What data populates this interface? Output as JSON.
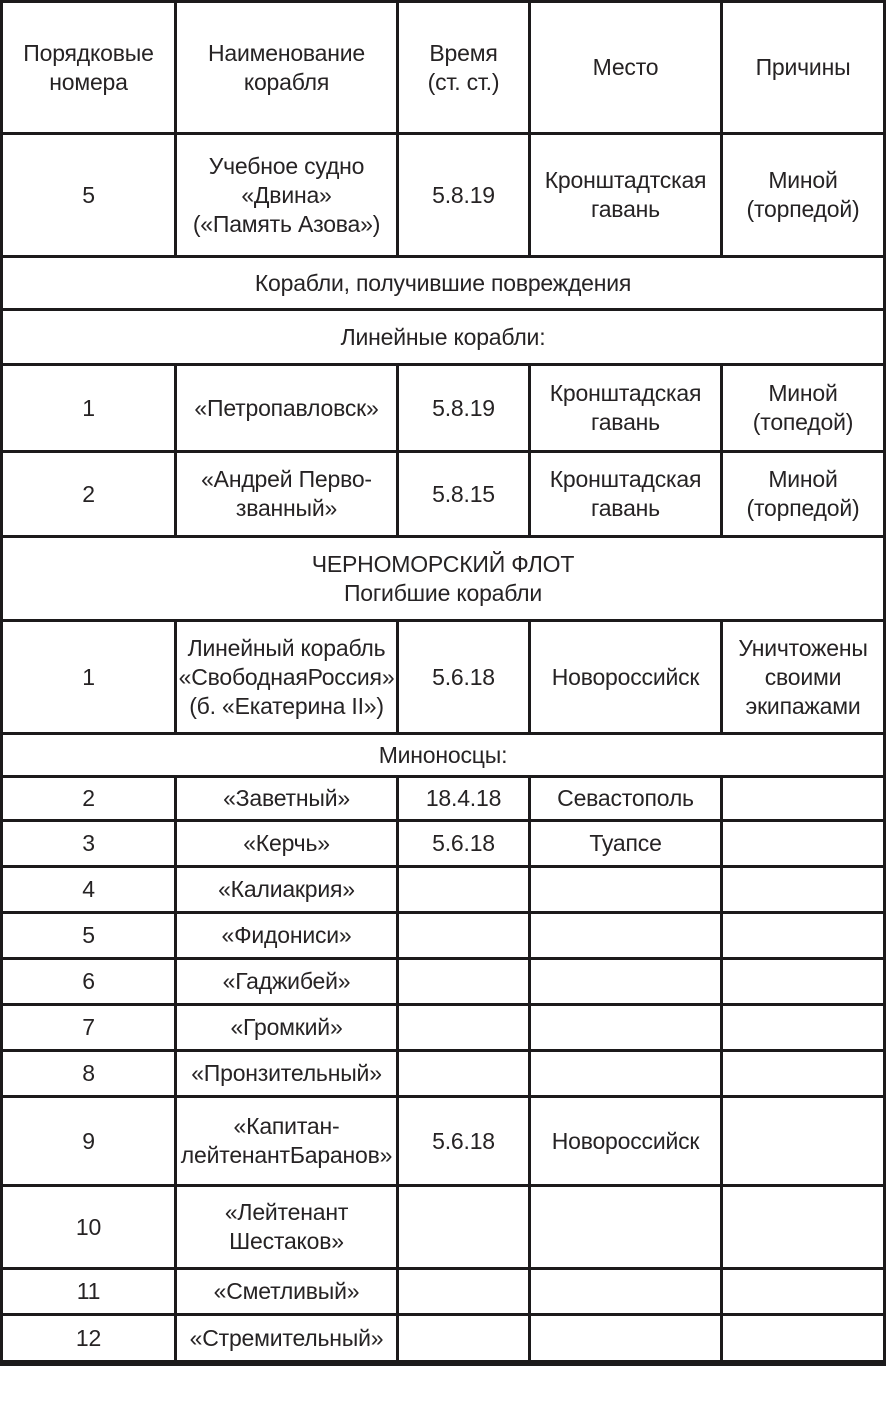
{
  "table": {
    "columns": [
      "Порядковые\nномера",
      "Наименование\nкорабля",
      "Время\n(ст. ст.)",
      "Место",
      "Причины"
    ],
    "rows": [
      {
        "type": "header",
        "cells": [
          "Порядковые\nномера",
          "Наименование\nкорабля",
          "Время\n(ст. ст.)",
          "Место",
          "Причины"
        ]
      },
      {
        "type": "data",
        "cells": [
          "5",
          "Учебное судно\n«Двина»\n(«Память Азова»)",
          "5.8.19",
          "Кронштадтская\nгавань",
          "Миной\n(торпедой)"
        ]
      },
      {
        "type": "section",
        "label": "Корабли, получившие повреждения"
      },
      {
        "type": "section",
        "label": "Линейные корабли:"
      },
      {
        "type": "data",
        "cells": [
          "1",
          "«Петропавловск»",
          "5.8.19",
          "Кронштадская\nгавань",
          "Миной\n(топедой)"
        ]
      },
      {
        "type": "data",
        "cells": [
          "2",
          "«Андрей Перво-\nзванный»",
          "5.8.15",
          "Кронштадская\nгавань",
          "Миной\n(торпедой)"
        ]
      },
      {
        "type": "section",
        "label": "ЧЕРНОМОРСКИЙ ФЛОТ\nПогибшие корабли"
      },
      {
        "type": "data",
        "cells": [
          "1",
          "Линейный корабль\n«СвободнаяРоссия»\n(б. «Екатерина II»)",
          "5.6.18",
          "Новороссийск",
          "Уничтожены\nсвоими\nэкипажами"
        ]
      },
      {
        "type": "section",
        "label": "Миноносцы:"
      },
      {
        "type": "data",
        "cells": [
          "2",
          "«Заветный»",
          "18.4.18",
          "Севастополь",
          ""
        ]
      },
      {
        "type": "data",
        "cells": [
          "3",
          "«Керчь»",
          "5.6.18",
          "Туапсе",
          ""
        ]
      },
      {
        "type": "data",
        "cells": [
          "4",
          "«Калиакрия»",
          "",
          "",
          ""
        ]
      },
      {
        "type": "data",
        "cells": [
          "5",
          "«Фидониси»",
          "",
          "",
          ""
        ]
      },
      {
        "type": "data",
        "cells": [
          "6",
          "«Гаджибей»",
          "",
          "",
          ""
        ]
      },
      {
        "type": "data",
        "cells": [
          "7",
          "«Громкий»",
          "",
          "",
          ""
        ]
      },
      {
        "type": "data",
        "cells": [
          "8",
          "«Пронзительный»",
          "",
          "",
          ""
        ]
      },
      {
        "type": "data",
        "cells": [
          "9",
          "«Капитан-\nлейтенантБаранов»",
          "5.6.18",
          "Новороссийск",
          ""
        ]
      },
      {
        "type": "data",
        "cells": [
          "10",
          "«Лейтенант\nШестаков»",
          "",
          "",
          ""
        ]
      },
      {
        "type": "data",
        "cells": [
          "11",
          "«Сметливый»",
          "",
          "",
          ""
        ]
      },
      {
        "type": "data",
        "cells": [
          "12",
          "«Стремительный»",
          "",
          "",
          ""
        ]
      }
    ],
    "colors": {
      "text": "#262324",
      "border": "#1c1a1b",
      "background": "#ffffff"
    }
  }
}
